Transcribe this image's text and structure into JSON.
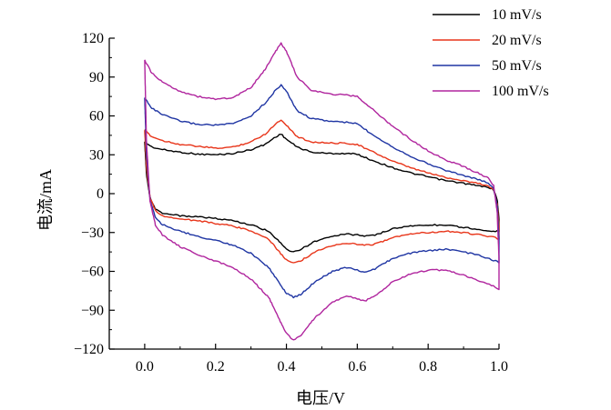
{
  "chart_data": {
    "type": "line",
    "title": "",
    "xlabel": "电压/V",
    "ylabel": "电流/mA",
    "xlim": [
      -0.1,
      1.0
    ],
    "ylim": [
      -120,
      120
    ],
    "xticks": [
      0.0,
      0.2,
      0.4,
      0.6,
      0.8,
      1.0
    ],
    "xtick_labels": [
      "0.0",
      "0.2",
      "0.4",
      "0.6",
      "0.8",
      "1.0"
    ],
    "yticks": [
      -120,
      -90,
      -60,
      -30,
      0,
      30,
      60,
      90,
      120
    ],
    "ytick_labels": [
      "−120",
      "−90",
      "−60",
      "−30",
      "0",
      "30",
      "60",
      "90",
      "120"
    ],
    "grid": false,
    "legend_position": "top-right",
    "series": [
      {
        "name": "10 mV/s",
        "color": "#000000",
        "anodic": [
          [
            0.0,
            40
          ],
          [
            0.02,
            36
          ],
          [
            0.05,
            34
          ],
          [
            0.1,
            32
          ],
          [
            0.15,
            30.5
          ],
          [
            0.2,
            30
          ],
          [
            0.25,
            31
          ],
          [
            0.3,
            34
          ],
          [
            0.34,
            38
          ],
          [
            0.37,
            44
          ],
          [
            0.385,
            46
          ],
          [
            0.4,
            42
          ],
          [
            0.43,
            36
          ],
          [
            0.47,
            32
          ],
          [
            0.52,
            31
          ],
          [
            0.57,
            31
          ],
          [
            0.6,
            30.5
          ],
          [
            0.63,
            27
          ],
          [
            0.7,
            20
          ],
          [
            0.75,
            16
          ],
          [
            0.8,
            13
          ],
          [
            0.85,
            10
          ],
          [
            0.9,
            8
          ],
          [
            0.94,
            6
          ],
          [
            0.97,
            5
          ],
          [
            0.985,
            3
          ],
          [
            0.995,
            -5
          ],
          [
            1.0,
            -20
          ],
          [
            1.0,
            -29
          ]
        ],
        "cathodic": [
          [
            1.0,
            -29
          ],
          [
            0.99,
            -29
          ],
          [
            0.95,
            -28
          ],
          [
            0.9,
            -26
          ],
          [
            0.85,
            -24.5
          ],
          [
            0.8,
            -24
          ],
          [
            0.75,
            -25
          ],
          [
            0.7,
            -27
          ],
          [
            0.65,
            -32
          ],
          [
            0.62,
            -33
          ],
          [
            0.6,
            -32
          ],
          [
            0.57,
            -31
          ],
          [
            0.53,
            -33
          ],
          [
            0.48,
            -37
          ],
          [
            0.44,
            -43
          ],
          [
            0.42,
            -45
          ],
          [
            0.4,
            -43
          ],
          [
            0.38,
            -37
          ],
          [
            0.35,
            -29
          ],
          [
            0.3,
            -24
          ],
          [
            0.25,
            -21
          ],
          [
            0.2,
            -19
          ],
          [
            0.15,
            -18
          ],
          [
            0.1,
            -17
          ],
          [
            0.05,
            -15
          ],
          [
            0.03,
            -12
          ],
          [
            0.015,
            -3
          ],
          [
            0.005,
            15
          ],
          [
            0.0,
            40
          ]
        ]
      },
      {
        "name": "20 mV/s",
        "color": "#e8351a",
        "anodic": [
          [
            0.0,
            49
          ],
          [
            0.02,
            44
          ],
          [
            0.05,
            41
          ],
          [
            0.1,
            38
          ],
          [
            0.15,
            36.5
          ],
          [
            0.2,
            35
          ],
          [
            0.25,
            36
          ],
          [
            0.3,
            40
          ],
          [
            0.34,
            46
          ],
          [
            0.37,
            54
          ],
          [
            0.385,
            57
          ],
          [
            0.4,
            53
          ],
          [
            0.43,
            44
          ],
          [
            0.47,
            40
          ],
          [
            0.52,
            39
          ],
          [
            0.57,
            39
          ],
          [
            0.6,
            38
          ],
          [
            0.63,
            34
          ],
          [
            0.7,
            25
          ],
          [
            0.75,
            20
          ],
          [
            0.8,
            16
          ],
          [
            0.85,
            12.5
          ],
          [
            0.9,
            10
          ],
          [
            0.94,
            8
          ],
          [
            0.97,
            6
          ],
          [
            0.985,
            3
          ],
          [
            0.995,
            -8
          ],
          [
            1.0,
            -25
          ],
          [
            1.0,
            -35
          ]
        ],
        "cathodic": [
          [
            1.0,
            -35
          ],
          [
            0.99,
            -34
          ],
          [
            0.95,
            -32
          ],
          [
            0.9,
            -30
          ],
          [
            0.85,
            -29
          ],
          [
            0.8,
            -30
          ],
          [
            0.75,
            -31
          ],
          [
            0.7,
            -34
          ],
          [
            0.65,
            -39
          ],
          [
            0.62,
            -40
          ],
          [
            0.6,
            -39
          ],
          [
            0.57,
            -38
          ],
          [
            0.53,
            -40
          ],
          [
            0.48,
            -45
          ],
          [
            0.44,
            -52
          ],
          [
            0.42,
            -53
          ],
          [
            0.4,
            -51
          ],
          [
            0.38,
            -45
          ],
          [
            0.35,
            -35
          ],
          [
            0.3,
            -29
          ],
          [
            0.25,
            -25
          ],
          [
            0.2,
            -23
          ],
          [
            0.15,
            -21
          ],
          [
            0.1,
            -19.5
          ],
          [
            0.05,
            -17
          ],
          [
            0.03,
            -13
          ],
          [
            0.015,
            -3
          ],
          [
            0.005,
            20
          ],
          [
            0.0,
            49
          ]
        ]
      },
      {
        "name": "50 mV/s",
        "color": "#1f35a3",
        "anodic": [
          [
            0.0,
            74
          ],
          [
            0.02,
            66
          ],
          [
            0.05,
            61
          ],
          [
            0.1,
            56
          ],
          [
            0.15,
            53.5
          ],
          [
            0.2,
            53
          ],
          [
            0.25,
            54
          ],
          [
            0.3,
            60
          ],
          [
            0.34,
            70
          ],
          [
            0.37,
            80
          ],
          [
            0.385,
            84
          ],
          [
            0.4,
            79
          ],
          [
            0.43,
            64
          ],
          [
            0.47,
            58
          ],
          [
            0.52,
            56
          ],
          [
            0.57,
            55
          ],
          [
            0.6,
            54
          ],
          [
            0.63,
            48
          ],
          [
            0.7,
            36
          ],
          [
            0.75,
            29
          ],
          [
            0.8,
            23
          ],
          [
            0.85,
            18
          ],
          [
            0.9,
            14
          ],
          [
            0.94,
            11
          ],
          [
            0.97,
            8
          ],
          [
            0.985,
            4
          ],
          [
            0.995,
            -10
          ],
          [
            1.0,
            -35
          ],
          [
            1.0,
            -53
          ]
        ],
        "cathodic": [
          [
            1.0,
            -53
          ],
          [
            0.99,
            -52
          ],
          [
            0.95,
            -48
          ],
          [
            0.9,
            -45
          ],
          [
            0.85,
            -43
          ],
          [
            0.8,
            -44
          ],
          [
            0.75,
            -46
          ],
          [
            0.7,
            -50
          ],
          [
            0.65,
            -58
          ],
          [
            0.62,
            -61
          ],
          [
            0.6,
            -59
          ],
          [
            0.57,
            -57
          ],
          [
            0.53,
            -60
          ],
          [
            0.48,
            -68
          ],
          [
            0.44,
            -78
          ],
          [
            0.42,
            -80
          ],
          [
            0.4,
            -77
          ],
          [
            0.38,
            -69
          ],
          [
            0.35,
            -57
          ],
          [
            0.3,
            -46
          ],
          [
            0.25,
            -40
          ],
          [
            0.2,
            -36
          ],
          [
            0.15,
            -33
          ],
          [
            0.1,
            -29
          ],
          [
            0.05,
            -24
          ],
          [
            0.03,
            -18
          ],
          [
            0.015,
            -5
          ],
          [
            0.005,
            30
          ],
          [
            0.0,
            74
          ]
        ]
      },
      {
        "name": "100 mV/s",
        "color": "#b0259e",
        "anodic": [
          [
            0.0,
            103
          ],
          [
            0.02,
            93
          ],
          [
            0.05,
            86
          ],
          [
            0.1,
            79
          ],
          [
            0.15,
            75
          ],
          [
            0.2,
            73
          ],
          [
            0.25,
            74
          ],
          [
            0.3,
            82
          ],
          [
            0.34,
            96
          ],
          [
            0.37,
            110
          ],
          [
            0.385,
            116
          ],
          [
            0.4,
            110
          ],
          [
            0.43,
            90
          ],
          [
            0.47,
            80
          ],
          [
            0.52,
            77
          ],
          [
            0.57,
            76
          ],
          [
            0.6,
            75
          ],
          [
            0.63,
            68
          ],
          [
            0.7,
            52
          ],
          [
            0.75,
            42
          ],
          [
            0.8,
            33
          ],
          [
            0.85,
            26
          ],
          [
            0.9,
            21
          ],
          [
            0.94,
            16
          ],
          [
            0.97,
            12
          ],
          [
            0.985,
            6
          ],
          [
            0.995,
            -15
          ],
          [
            1.0,
            -50
          ],
          [
            1.0,
            -74
          ]
        ],
        "cathodic": [
          [
            1.0,
            -74
          ],
          [
            0.99,
            -72
          ],
          [
            0.95,
            -68
          ],
          [
            0.9,
            -63
          ],
          [
            0.85,
            -59
          ],
          [
            0.8,
            -59
          ],
          [
            0.75,
            -62
          ],
          [
            0.7,
            -68
          ],
          [
            0.65,
            -79
          ],
          [
            0.62,
            -83
          ],
          [
            0.6,
            -81
          ],
          [
            0.57,
            -79
          ],
          [
            0.53,
            -84
          ],
          [
            0.48,
            -96
          ],
          [
            0.44,
            -110
          ],
          [
            0.42,
            -113
          ],
          [
            0.4,
            -108
          ],
          [
            0.38,
            -97
          ],
          [
            0.35,
            -80
          ],
          [
            0.3,
            -66
          ],
          [
            0.25,
            -57
          ],
          [
            0.2,
            -52
          ],
          [
            0.15,
            -47
          ],
          [
            0.1,
            -41
          ],
          [
            0.05,
            -32
          ],
          [
            0.03,
            -24
          ],
          [
            0.015,
            -6
          ],
          [
            0.005,
            40
          ],
          [
            0.0,
            103
          ]
        ]
      }
    ]
  }
}
